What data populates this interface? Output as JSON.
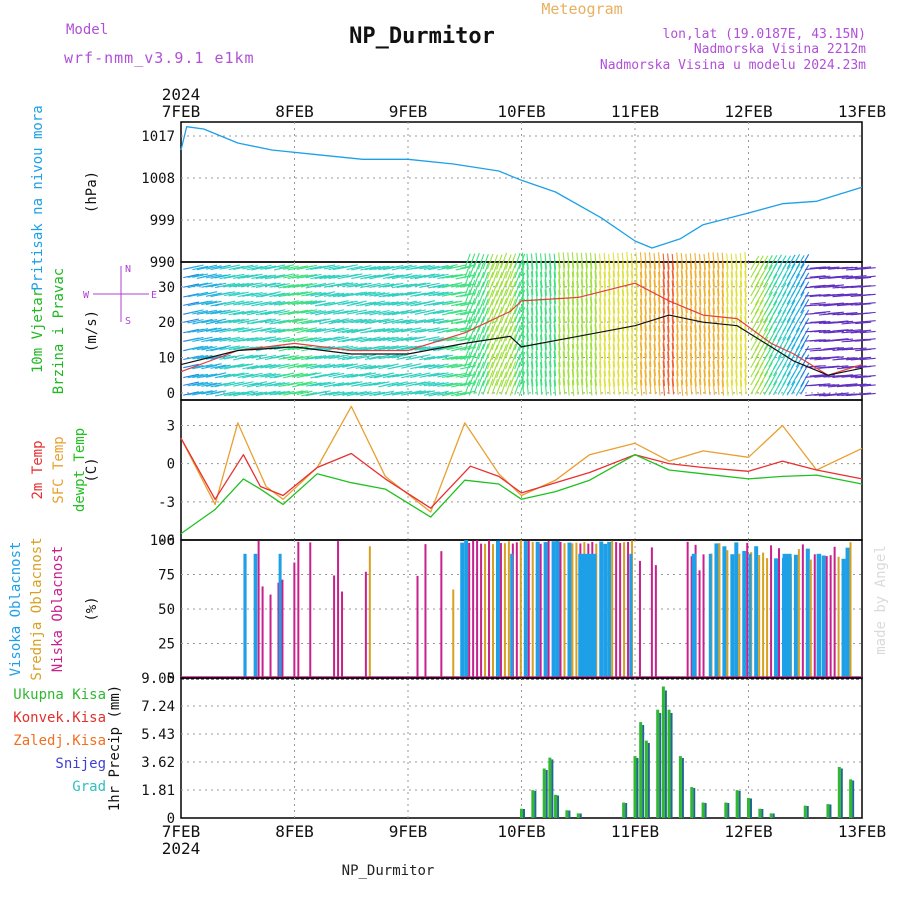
{
  "header": {
    "model_label": "Model",
    "model_value": "wrf-nmm_v3.9.1 e1km",
    "title": "NP_Durmitor",
    "subtitle": "Meteogram",
    "lonlat": "lon,lat (19.0187E, 43.15N)",
    "elevation": "Nadmorska Visina 2212m",
    "model_elevation": "Nadmorska Visina u modelu 2024.23m",
    "bottom_label": "NP_Durmitor",
    "watermark": "made by Angel",
    "year_top": "2024",
    "year_bottom": "2024"
  },
  "colors": {
    "pressure": "#1ea0e8",
    "wind_label": "#20b820",
    "wind_dir": "#b040d0",
    "temp2m": "#e83030",
    "sfc": "#e8a030",
    "dewpt": "#20c020",
    "cloud_high": "#1ea0e8",
    "cloud_mid": "#d8a020",
    "cloud_low": "#c8208c",
    "precip_total": "#30b830",
    "precip_conv": "#e03030",
    "precip_frozen": "#f07020",
    "precip_snow": "#4040d0",
    "precip_hail": "#30c0c0"
  },
  "chart_data": {
    "type": "meteogram",
    "x_days": [
      "7FEB",
      "8FEB",
      "9FEB",
      "10FEB",
      "11FEB",
      "12FEB",
      "13FEB"
    ],
    "x_range_days": [
      0,
      6
    ],
    "panels": [
      {
        "id": "pressure",
        "labels": [
          "Pritisak na nivou mora"
        ],
        "unit": "(hPa)",
        "yticks": [
          990,
          999,
          1008,
          1017
        ],
        "ylim": [
          990,
          1020
        ],
        "series": [
          {
            "x": [
              0,
              0.05,
              0.2,
              0.5,
              0.8,
              1.2,
              1.6,
              2.0,
              2.4,
              2.8,
              3.0,
              3.3,
              3.7,
              4.0,
              4.15,
              4.4,
              4.6,
              5.0,
              5.3,
              5.6,
              6.0
            ],
            "y": [
              1014,
              1019,
              1018.5,
              1015.5,
              1014,
              1013,
              1012,
              1012,
              1011,
              1009.5,
              1007.5,
              1005,
              999.5,
              994.5,
              993,
              995,
              998,
              1000.5,
              1002.5,
              1003,
              1006
            ]
          }
        ]
      },
      {
        "id": "wind",
        "labels": [
          "10m Vjetar",
          "Brzina i Pravac"
        ],
        "unit": "(m/s)",
        "yticks": [
          0,
          10,
          20,
          30
        ],
        "ylim": [
          -2,
          37
        ],
        "direction_legend": {
          "n": "N",
          "s": "S",
          "e": "E",
          "w": "W"
        },
        "speed": {
          "x": [
            0,
            0.5,
            1.0,
            1.5,
            2.0,
            2.5,
            2.9,
            3.0,
            3.5,
            4.0,
            4.3,
            4.6,
            4.9,
            5.2,
            5.4,
            5.7,
            6.0
          ],
          "y": [
            8,
            12,
            13,
            11,
            11,
            14,
            16,
            13,
            16,
            19,
            22,
            20,
            19,
            13,
            9,
            5,
            7
          ]
        },
        "gust": {
          "x": [
            0,
            0.5,
            1.0,
            1.5,
            2.0,
            2.5,
            2.9,
            3.0,
            3.5,
            4.0,
            4.3,
            4.6,
            4.9,
            5.2,
            5.4,
            5.7,
            6.0
          ],
          "y": [
            6,
            12,
            14,
            12,
            12,
            17,
            23,
            26,
            27,
            31,
            26,
            22,
            21,
            14,
            11,
            5,
            8
          ]
        }
      },
      {
        "id": "temp",
        "labels": [
          "2m Temp",
          "SFC Temp",
          "dewpt Temp"
        ],
        "unit": "(C)",
        "yticks": [
          -6,
          -3,
          0,
          3
        ],
        "ylim": [
          -6,
          5
        ],
        "temp2m": {
          "x": [
            0,
            0.3,
            0.55,
            0.7,
            0.9,
            1.2,
            1.5,
            1.8,
            2.2,
            2.55,
            2.8,
            3.0,
            3.3,
            3.6,
            4.0,
            4.3,
            4.6,
            5.0,
            5.3,
            5.6,
            6.0
          ],
          "y": [
            2,
            -2.8,
            0.7,
            -1.8,
            -2.5,
            -0.3,
            0.8,
            -1.2,
            -3.5,
            -0.2,
            -1.0,
            -2.3,
            -1.5,
            -0.7,
            0.7,
            0,
            -0.3,
            -0.6,
            0.2,
            -0.5,
            -1.2
          ]
        },
        "sfc": {
          "x": [
            0,
            0.3,
            0.5,
            0.75,
            0.9,
            1.2,
            1.5,
            1.8,
            2.2,
            2.5,
            2.8,
            3.0,
            3.3,
            3.6,
            4.0,
            4.3,
            4.6,
            5.0,
            5.3,
            5.6,
            6.0
          ],
          "y": [
            2,
            -3.2,
            3.2,
            -1.8,
            -2.8,
            -0.3,
            4.5,
            -1.0,
            -3.8,
            3.2,
            -0.8,
            -2.5,
            -1.3,
            0.7,
            1.6,
            0.2,
            1.0,
            0.5,
            3.0,
            -0.5,
            1.2
          ]
        },
        "dewpt": {
          "x": [
            0,
            0.3,
            0.55,
            0.7,
            0.9,
            1.2,
            1.5,
            1.8,
            2.2,
            2.5,
            2.8,
            3.0,
            3.3,
            3.6,
            4.0,
            4.3,
            4.6,
            5.0,
            5.3,
            5.6,
            6.0
          ],
          "y": [
            -5.5,
            -3.6,
            -1.2,
            -2.0,
            -3.2,
            -0.8,
            -1.5,
            -2.0,
            -4.2,
            -1.3,
            -1.6,
            -2.8,
            -2.2,
            -1.3,
            0.7,
            -0.5,
            -0.8,
            -1.2,
            -1.0,
            -0.9,
            -1.6
          ]
        }
      },
      {
        "id": "cloud",
        "labels": [
          "Visoka Oblacnost",
          "Srednja Oblacnost",
          "Niska Oblacnost"
        ],
        "unit": "(%)",
        "yticks": [
          0,
          25,
          50,
          75,
          100
        ],
        "ylim": [
          0,
          100
        ]
      },
      {
        "id": "precip",
        "labels": [
          "Ukupna Kisa",
          "Konvek.Kisa",
          "Zaledj.Kisa",
          "Snijeg",
          "Grad"
        ],
        "unit": "1hr Precip (mm)",
        "yticks": [
          0,
          1.81,
          3.62,
          5.43,
          7.24,
          9.05
        ],
        "ytick_labels": [
          "0",
          "1.81",
          "3.62",
          "5.43",
          "7.24",
          "9.05"
        ],
        "ylim": [
          0,
          9.05
        ],
        "series": [
          {
            "name": "Ukupna Kisa",
            "x": [
              3.0,
              3.1,
              3.2,
              3.25,
              3.3,
              3.4,
              3.5,
              3.9,
              4.0,
              4.05,
              4.1,
              4.2,
              4.25,
              4.3,
              4.4,
              4.5,
              4.6,
              4.8,
              4.9,
              5.0,
              5.1,
              5.2,
              5.5,
              5.7,
              5.8,
              5.9
            ],
            "y": [
              0.6,
              1.8,
              3.2,
              3.9,
              1.5,
              0.5,
              0.3,
              1.0,
              4.0,
              6.2,
              5.0,
              7.0,
              8.5,
              7.0,
              4.0,
              2.0,
              1.0,
              1.0,
              1.8,
              1.3,
              0.6,
              0.3,
              0.8,
              0.9,
              3.3,
              2.5
            ]
          }
        ]
      }
    ]
  }
}
